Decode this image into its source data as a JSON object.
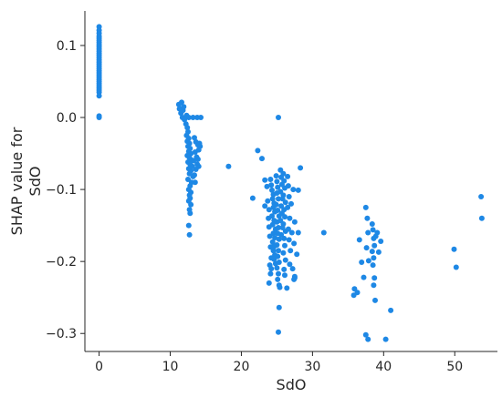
{
  "chart_data": {
    "type": "scatter",
    "xlabel": "SdO",
    "ylabel_lines": [
      "SHAP value for",
      "SdO"
    ],
    "xlim": [
      -2,
      56
    ],
    "ylim": [
      -0.325,
      0.148
    ],
    "xticks": [
      0,
      10,
      20,
      30,
      40,
      50
    ],
    "xtick_labels": [
      "0",
      "10",
      "20",
      "30",
      "40",
      "50"
    ],
    "yticks": [
      0.1,
      0.0,
      -0.1,
      -0.2,
      -0.3
    ],
    "ytick_labels": [
      "0.1",
      "0.0",
      "−0.1",
      "−0.2",
      "−0.3"
    ],
    "grid": false,
    "point_color": "#1e88e5",
    "points": [
      [
        0,
        0.126
      ],
      [
        0,
        0.121
      ],
      [
        0,
        0.117
      ],
      [
        0,
        0.113
      ],
      [
        0,
        0.11
      ],
      [
        0,
        0.107
      ],
      [
        0,
        0.104
      ],
      [
        0,
        0.101
      ],
      [
        0,
        0.098
      ],
      [
        0,
        0.095
      ],
      [
        0,
        0.092
      ],
      [
        0,
        0.089
      ],
      [
        0,
        0.086
      ],
      [
        0,
        0.083
      ],
      [
        0,
        0.08
      ],
      [
        0,
        0.077
      ],
      [
        0,
        0.074
      ],
      [
        0,
        0.071
      ],
      [
        0,
        0.068
      ],
      [
        0,
        0.065
      ],
      [
        0,
        0.062
      ],
      [
        0,
        0.059
      ],
      [
        0,
        0.056
      ],
      [
        0,
        0.053
      ],
      [
        0,
        0.05
      ],
      [
        0,
        0.047
      ],
      [
        0,
        0.044
      ],
      [
        0,
        0.041
      ],
      [
        0,
        0.038
      ],
      [
        0,
        0.035
      ],
      [
        0,
        0.03
      ],
      [
        0,
        0.0
      ],
      [
        0,
        0.002
      ],
      [
        11.2,
        0.018
      ],
      [
        11.6,
        0.021
      ],
      [
        11.3,
        0.012
      ],
      [
        11.8,
        0.01
      ],
      [
        11.5,
        0.006
      ],
      [
        11.9,
        0.015
      ],
      [
        12.1,
        0.0
      ],
      [
        12.6,
        0.0
      ],
      [
        13.2,
        0.0
      ],
      [
        13.8,
        0.0
      ],
      [
        14.3,
        0.0
      ],
      [
        11.7,
        0.0
      ],
      [
        12.3,
        0.003
      ],
      [
        12.0,
        -0.003
      ],
      [
        12.2,
        -0.009
      ],
      [
        12.4,
        -0.014
      ],
      [
        12.5,
        -0.02
      ],
      [
        12.3,
        -0.025
      ],
      [
        12.6,
        -0.029
      ],
      [
        12.4,
        -0.033
      ],
      [
        12.7,
        -0.036
      ],
      [
        12.5,
        -0.04
      ],
      [
        12.8,
        -0.043
      ],
      [
        12.6,
        -0.047
      ],
      [
        12.9,
        -0.05
      ],
      [
        12.4,
        -0.053
      ],
      [
        12.7,
        -0.056
      ],
      [
        13.0,
        -0.059
      ],
      [
        12.5,
        -0.062
      ],
      [
        12.8,
        -0.065
      ],
      [
        13.1,
        -0.068
      ],
      [
        12.6,
        -0.071
      ],
      [
        12.9,
        -0.074
      ],
      [
        12.7,
        -0.078
      ],
      [
        13.2,
        -0.082
      ],
      [
        12.5,
        -0.086
      ],
      [
        13.0,
        -0.09
      ],
      [
        12.8,
        -0.095
      ],
      [
        12.6,
        -0.1
      ],
      [
        12.9,
        -0.104
      ],
      [
        12.7,
        -0.108
      ],
      [
        12.8,
        -0.112
      ],
      [
        12.6,
        -0.116
      ],
      [
        12.9,
        -0.121
      ],
      [
        12.7,
        -0.128
      ],
      [
        12.8,
        -0.133
      ],
      [
        12.6,
        -0.15
      ],
      [
        12.7,
        -0.163
      ],
      [
        13.4,
        -0.028
      ],
      [
        13.6,
        -0.034
      ],
      [
        13.9,
        -0.038
      ],
      [
        14.1,
        -0.036
      ],
      [
        13.5,
        -0.048
      ],
      [
        13.7,
        -0.055
      ],
      [
        14.0,
        -0.045
      ],
      [
        13.3,
        -0.06
      ],
      [
        13.8,
        -0.065
      ],
      [
        14.2,
        -0.04
      ],
      [
        13.6,
        -0.072
      ],
      [
        13.4,
        -0.08
      ],
      [
        13.9,
        -0.058
      ],
      [
        13.5,
        -0.09
      ],
      [
        14.0,
        -0.068
      ],
      [
        18.2,
        -0.068
      ],
      [
        21.6,
        -0.112
      ],
      [
        22.3,
        -0.046
      ],
      [
        22.9,
        -0.057
      ],
      [
        23.3,
        -0.087
      ],
      [
        23.6,
        -0.096
      ],
      [
        23.3,
        -0.123
      ],
      [
        25.2,
        0.0
      ],
      [
        24.1,
        -0.086
      ],
      [
        24.2,
        -0.094
      ],
      [
        24.3,
        -0.101
      ],
      [
        24.5,
        -0.107
      ],
      [
        24.4,
        -0.113
      ],
      [
        24.6,
        -0.119
      ],
      [
        24.5,
        -0.125
      ],
      [
        24.7,
        -0.131
      ],
      [
        24.3,
        -0.137
      ],
      [
        24.6,
        -0.143
      ],
      [
        24.4,
        -0.149
      ],
      [
        24.8,
        -0.155
      ],
      [
        24.5,
        -0.161
      ],
      [
        24.7,
        -0.167
      ],
      [
        24.4,
        -0.173
      ],
      [
        24.6,
        -0.179
      ],
      [
        24.5,
        -0.185
      ],
      [
        24.7,
        -0.191
      ],
      [
        24.6,
        -0.197
      ],
      [
        24.8,
        -0.203
      ],
      [
        24.9,
        -0.081
      ],
      [
        25.0,
        -0.089
      ],
      [
        25.1,
        -0.097
      ],
      [
        25.0,
        -0.105
      ],
      [
        25.2,
        -0.113
      ],
      [
        24.9,
        -0.121
      ],
      [
        25.1,
        -0.129
      ],
      [
        25.3,
        -0.137
      ],
      [
        25.0,
        -0.145
      ],
      [
        25.2,
        -0.153
      ],
      [
        25.1,
        -0.161
      ],
      [
        25.3,
        -0.169
      ],
      [
        25.0,
        -0.177
      ],
      [
        25.2,
        -0.185
      ],
      [
        25.1,
        -0.193
      ],
      [
        25.3,
        -0.201
      ],
      [
        25.0,
        -0.209
      ],
      [
        25.2,
        -0.217
      ],
      [
        25.1,
        -0.225
      ],
      [
        25.3,
        -0.233
      ],
      [
        25.5,
        -0.073
      ],
      [
        25.6,
        -0.083
      ],
      [
        25.7,
        -0.093
      ],
      [
        25.5,
        -0.103
      ],
      [
        25.8,
        -0.113
      ],
      [
        25.6,
        -0.123
      ],
      [
        25.7,
        -0.133
      ],
      [
        25.5,
        -0.143
      ],
      [
        25.8,
        -0.153
      ],
      [
        25.6,
        -0.163
      ],
      [
        25.9,
        -0.078
      ],
      [
        26.0,
        -0.088
      ],
      [
        26.1,
        -0.098
      ],
      [
        25.9,
        -0.108
      ],
      [
        26.2,
        -0.118
      ],
      [
        26.0,
        -0.128
      ],
      [
        26.1,
        -0.138
      ],
      [
        25.9,
        -0.148
      ],
      [
        26.2,
        -0.158
      ],
      [
        26.0,
        -0.168
      ],
      [
        26.1,
        -0.178
      ],
      [
        25.9,
        -0.188
      ],
      [
        26.2,
        -0.198
      ],
      [
        26.0,
        -0.211
      ],
      [
        26.1,
        -0.219
      ],
      [
        23.8,
        -0.14
      ],
      [
        23.9,
        -0.152
      ],
      [
        24.0,
        -0.165
      ],
      [
        24.1,
        -0.18
      ],
      [
        23.7,
        -0.116
      ],
      [
        24.2,
        -0.195
      ],
      [
        24.0,
        -0.205
      ],
      [
        23.9,
        -0.128
      ],
      [
        26.5,
        -0.082
      ],
      [
        26.6,
        -0.095
      ],
      [
        26.7,
        -0.11
      ],
      [
        26.5,
        -0.125
      ],
      [
        26.8,
        -0.14
      ],
      [
        26.6,
        -0.155
      ],
      [
        26.7,
        -0.17
      ],
      [
        26.9,
        -0.185
      ],
      [
        27.0,
        -0.12
      ],
      [
        27.1,
        -0.16
      ],
      [
        27.3,
        -0.1
      ],
      [
        27.5,
        -0.145
      ],
      [
        27.4,
        -0.175
      ],
      [
        27.8,
        -0.19
      ],
      [
        28.0,
        -0.16
      ],
      [
        27.2,
        -0.21
      ],
      [
        27.4,
        -0.225
      ],
      [
        25.4,
        -0.236
      ],
      [
        26.4,
        -0.237
      ],
      [
        27.5,
        -0.221
      ],
      [
        24.2,
        -0.21
      ],
      [
        24.1,
        -0.217
      ],
      [
        23.9,
        -0.23
      ],
      [
        25.3,
        -0.264
      ],
      [
        25.2,
        -0.298
      ],
      [
        27.5,
        -0.223
      ],
      [
        26.8,
        -0.204
      ],
      [
        28.0,
        -0.101
      ],
      [
        28.3,
        -0.07
      ],
      [
        31.6,
        -0.16
      ],
      [
        35.9,
        -0.238
      ],
      [
        35.8,
        -0.247
      ],
      [
        36.3,
        -0.243
      ],
      [
        36.6,
        -0.17
      ],
      [
        36.9,
        -0.201
      ],
      [
        37.2,
        -0.222
      ],
      [
        37.5,
        -0.125
      ],
      [
        37.7,
        -0.14
      ],
      [
        37.8,
        -0.16
      ],
      [
        37.6,
        -0.181
      ],
      [
        37.9,
        -0.199
      ],
      [
        37.5,
        -0.302
      ],
      [
        37.8,
        -0.308
      ],
      [
        38.4,
        -0.148
      ],
      [
        38.5,
        -0.156
      ],
      [
        38.6,
        -0.168
      ],
      [
        38.7,
        -0.178
      ],
      [
        38.4,
        -0.186
      ],
      [
        38.6,
        -0.195
      ],
      [
        38.5,
        -0.205
      ],
      [
        38.7,
        -0.223
      ],
      [
        38.6,
        -0.233
      ],
      [
        38.8,
        -0.254
      ],
      [
        39.1,
        -0.16
      ],
      [
        39.3,
        -0.187
      ],
      [
        39.6,
        -0.172
      ],
      [
        40.3,
        -0.308
      ],
      [
        41.0,
        -0.268
      ],
      [
        38.9,
        -0.165
      ],
      [
        49.9,
        -0.183
      ],
      [
        50.2,
        -0.208
      ],
      [
        53.7,
        -0.11
      ],
      [
        53.8,
        -0.14
      ]
    ]
  }
}
